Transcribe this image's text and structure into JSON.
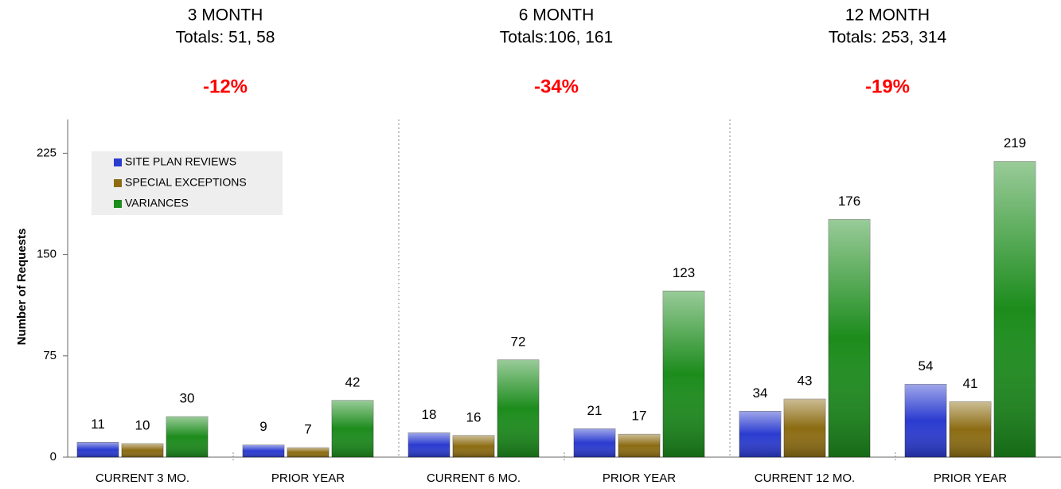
{
  "chart_data": {
    "type": "bar",
    "y_label": "Number of Requests",
    "categories": [
      "CURRENT 3 MO.",
      "PRIOR YEAR",
      "CURRENT 6 MO.",
      "PRIOR YEAR",
      "CURRENT 12 MO.",
      "PRIOR YEAR"
    ],
    "series": [
      {
        "name": "SITE PLAN REVIEWS",
        "color": "#2a3bd0",
        "values": [
          11,
          9,
          18,
          21,
          34,
          54
        ]
      },
      {
        "name": "SPECIAL EXCEPTIONS",
        "color": "#8c6c12",
        "values": [
          10,
          7,
          16,
          17,
          43,
          41
        ]
      },
      {
        "name": "VARIANCES",
        "color": "#1c8c1c",
        "values": [
          30,
          42,
          72,
          123,
          176,
          219
        ]
      }
    ],
    "sections": [
      {
        "title": "3 MONTH",
        "totals": "Totals: 51, 58",
        "change": "-12%"
      },
      {
        "title": "6 MONTH",
        "totals": "Totals:106, 161",
        "change": "-34%"
      },
      {
        "title": "12 MONTH",
        "totals": "Totals: 253, 314",
        "change": "-19%"
      }
    ],
    "ylim": [
      0,
      250
    ],
    "yticks": [
      0,
      75,
      150,
      225
    ],
    "legend": "top-left"
  }
}
